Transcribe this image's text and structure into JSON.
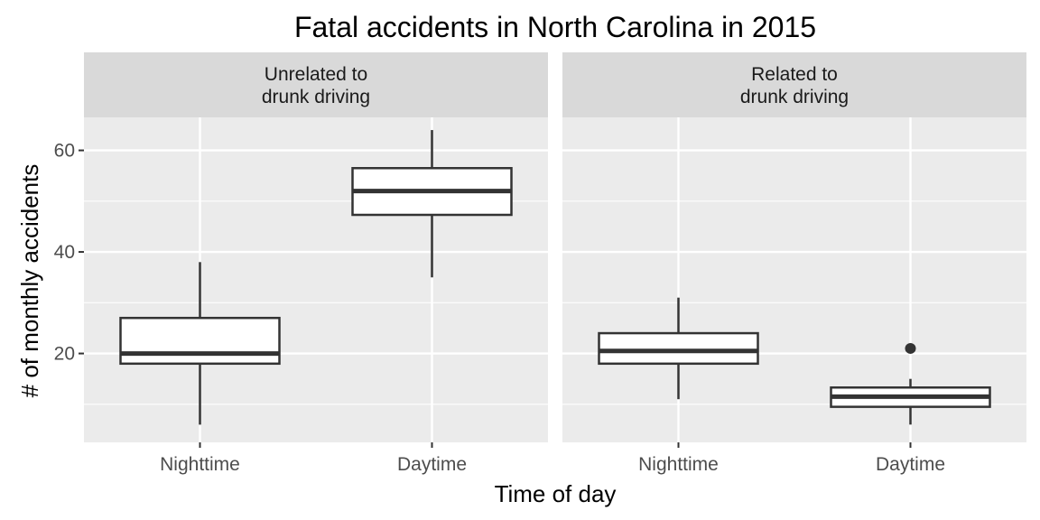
{
  "chart_data": {
    "type": "boxplot",
    "title": "Fatal accidents in North Carolina in 2015",
    "xlabel": "Time of day",
    "ylabel": "# of monthly accidents",
    "categories": [
      "Nighttime",
      "Daytime"
    ],
    "yticks": [
      20,
      40,
      60
    ],
    "ylim": [
      2.5,
      66.5
    ],
    "grid": true,
    "panels": [
      {
        "label_line1": "Unrelated to",
        "label_line2": "drunk driving",
        "boxes": [
          {
            "category": "Nighttime",
            "whisker_low": 6,
            "q1": 18,
            "median": 20,
            "q3": 27,
            "whisker_high": 38,
            "outliers": []
          },
          {
            "category": "Daytime",
            "whisker_low": 35,
            "q1": 47.3,
            "median": 52,
            "q3": 56.5,
            "whisker_high": 64,
            "outliers": []
          }
        ]
      },
      {
        "label_line1": "Related to",
        "label_line2": "drunk driving",
        "boxes": [
          {
            "category": "Nighttime",
            "whisker_low": 11,
            "q1": 18,
            "median": 20.5,
            "q3": 24,
            "whisker_high": 31,
            "outliers": []
          },
          {
            "category": "Daytime",
            "whisker_low": 6,
            "q1": 9.5,
            "median": 11.5,
            "q3": 13.3,
            "whisker_high": 15,
            "outliers": [
              21
            ]
          }
        ]
      }
    ],
    "colors": {
      "panel_bg": "#ebebeb",
      "strip_bg": "#d9d9d9",
      "grid": "#ffffff",
      "box_line": "#333333",
      "box_fill": "#ffffff"
    }
  }
}
